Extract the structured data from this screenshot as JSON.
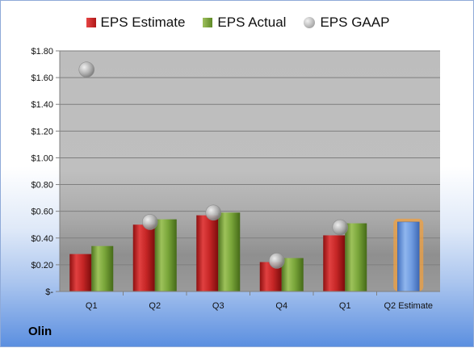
{
  "company": "Olin",
  "legend": {
    "estimate": "EPS Estimate",
    "actual": "EPS Actual",
    "gaap": "EPS GAAP"
  },
  "colors": {
    "estimate": "#c62626",
    "actual": "#7aa63a",
    "gaap": "#a6a6a6",
    "forecast": "#6f9be0",
    "forecast_glow": "#f0a040"
  },
  "chart_data": {
    "type": "bar",
    "categories": [
      "Q1",
      "Q2",
      "Q3",
      "Q4",
      "Q1",
      "Q2 Estimate"
    ],
    "series": [
      {
        "name": "EPS Estimate",
        "values": [
          0.28,
          0.5,
          0.57,
          0.22,
          0.42,
          0.52
        ]
      },
      {
        "name": "EPS Actual",
        "values": [
          0.34,
          0.54,
          0.59,
          0.25,
          0.51,
          null
        ]
      },
      {
        "name": "EPS GAAP",
        "values": [
          1.66,
          0.52,
          0.59,
          0.23,
          0.48,
          null
        ]
      }
    ],
    "ylim": [
      0,
      1.8
    ],
    "yticks": [
      0,
      0.2,
      0.4,
      0.6,
      0.8,
      1.0,
      1.2,
      1.4,
      1.6,
      1.8
    ],
    "ytick_labels": [
      "$-",
      "$0.20",
      "$0.40",
      "$0.60",
      "$0.80",
      "$1.00",
      "$1.20",
      "$1.40",
      "$1.60",
      "$1.80"
    ],
    "grid": true,
    "legend_position": "top"
  }
}
